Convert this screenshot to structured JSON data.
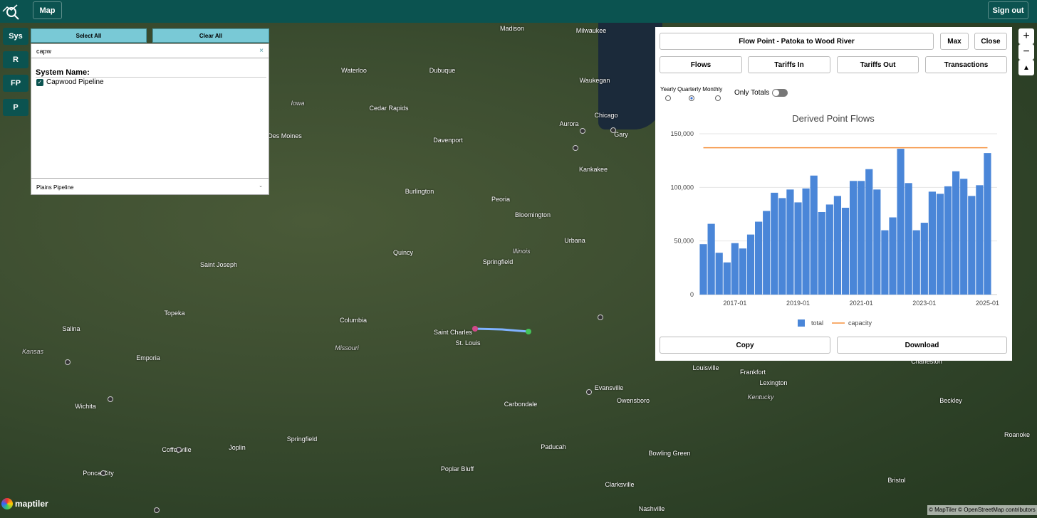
{
  "header": {
    "map_button": "Map",
    "sign_out": "Sign out"
  },
  "sidebar": {
    "buttons": [
      "Sys",
      "R",
      "FP",
      "P"
    ],
    "select_all": "Select All",
    "clear_all": "Clear All",
    "search": "capw",
    "list_title": "System Name:",
    "items": [
      "Capwood Pipeline"
    ],
    "dropdown": "Plains Pipeline"
  },
  "panel": {
    "title": "Flow Point - Patoka to Wood River",
    "max": "Max",
    "close": "Close",
    "tabs": [
      "Flows",
      "Tariffs In",
      "Tariffs Out",
      "Transactions"
    ],
    "periods": "Yearly Quarterly Monthly",
    "only_totals": "Only Totals",
    "copy": "Copy",
    "download": "Download"
  },
  "map": {
    "labels": [
      "Madison",
      "Milwaukee",
      "Waterloo",
      "Dubuque",
      "Waukegan",
      "Iowa",
      "Cedar Rapids",
      "Chicago",
      "Aurora",
      "Gary",
      "Des Moines",
      "Davenport",
      "Kankakee",
      "Burlington",
      "Peoria",
      "Bloomington",
      "Urbana",
      "Quincy",
      "Illinois",
      "Springfield",
      "Saint Joseph",
      "Topeka",
      "Columbia",
      "Saint Charles",
      "St. Louis",
      "Missouri",
      "Salina",
      "Kansas",
      "Emporia",
      "Wichita",
      "Carbondale",
      "Evansville",
      "Owensboro",
      "Kentucky",
      "Louisville",
      "Frankfort",
      "Lexington",
      "Charleston",
      "Beckley",
      "Roanoke",
      "Joplin",
      "Springfield",
      "Paducah",
      "Bowling Green",
      "Poplar Bluff",
      "Clarksville",
      "Bristol",
      "Nashville",
      "Coffeyville",
      "Ponca City"
    ],
    "logo": "maptiler",
    "attribution": "© MapTiler © OpenStreetMap contributors",
    "zoom_in": "+",
    "zoom_out": "−"
  },
  "chart_data": {
    "type": "bar",
    "title": "Derived Point Flows",
    "categories": [
      null,
      null,
      null,
      null,
      "2017-01",
      null,
      null,
      null,
      null,
      null,
      null,
      null,
      "2019-01",
      null,
      null,
      null,
      null,
      null,
      null,
      null,
      "2021-01",
      null,
      null,
      null,
      null,
      null,
      null,
      null,
      "2023-01",
      null,
      null,
      null,
      null,
      null,
      null,
      null,
      "2025-01"
    ],
    "series": [
      {
        "name": "total",
        "type": "bar",
        "color": "#4a86d8",
        "values": [
          47000,
          66000,
          39000,
          30000,
          48000,
          43000,
          56000,
          68000,
          78000,
          95000,
          90000,
          98000,
          86000,
          99000,
          111000,
          77000,
          84000,
          92000,
          81000,
          106000,
          106000,
          117000,
          98000,
          60000,
          72000,
          136000,
          104000,
          60000,
          67000,
          96000,
          94000,
          101000,
          115000,
          108000,
          92000,
          102000,
          132000
        ]
      },
      {
        "name": "capacity",
        "type": "line",
        "color": "#f5923e",
        "values": [
          137000,
          137000,
          137000,
          137000,
          137000,
          137000,
          137000,
          137000,
          137000,
          137000,
          137000,
          137000,
          137000,
          137000,
          137000,
          137000,
          137000,
          137000,
          137000,
          137000,
          137000,
          137000,
          137000,
          137000,
          137000,
          137000,
          137000,
          137000,
          137000,
          137000,
          137000,
          137000,
          137000,
          137000,
          137000,
          137000,
          137000
        ]
      }
    ],
    "ylim": [
      0,
      150000
    ],
    "yticks": [
      0,
      {
        "value": 50000,
        "label": "50,000"
      },
      {
        "value": 100000,
        "label": "100,000"
      },
      {
        "value": 150000,
        "label": "150,000"
      }
    ],
    "grid": true,
    "legend": "bottom"
  }
}
